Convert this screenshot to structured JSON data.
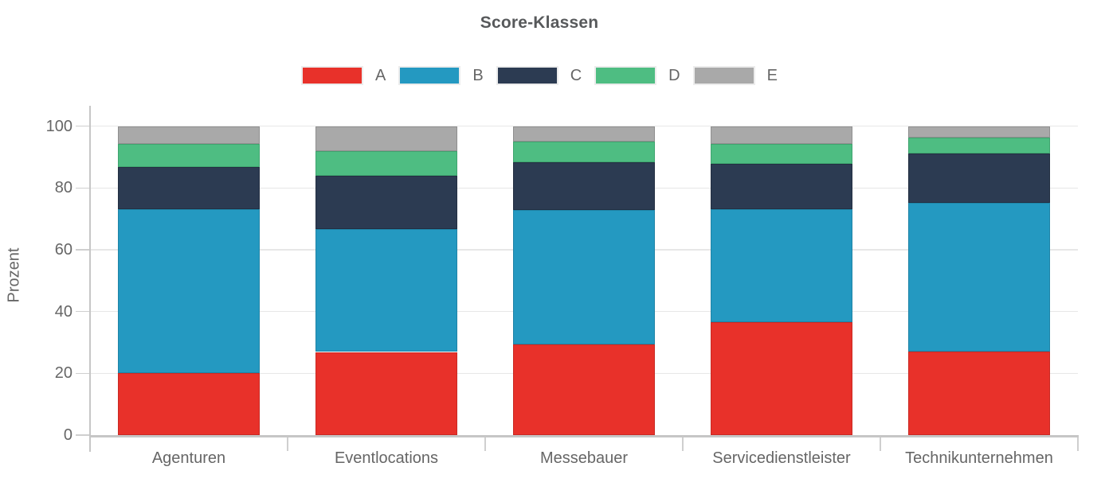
{
  "chart_data": {
    "type": "bar",
    "stacked": true,
    "orientation": "vertical",
    "title": "Score-Klassen",
    "ylabel": "Prozent",
    "xlabel": "",
    "ylim": [
      0,
      100
    ],
    "yticks": [
      0,
      20,
      40,
      60,
      80,
      100
    ],
    "grid": true,
    "legend_position": "top-center",
    "categories": [
      "Agenturen",
      "Eventlocations",
      "Messebauer",
      "Servicedienstleister",
      "Technikunternehmen"
    ],
    "series": [
      {
        "name": "A",
        "color": "#e8312a",
        "border_color": "#c92a24",
        "values": [
          20.1,
          26.9,
          29.3,
          36.5,
          27.1
        ]
      },
      {
        "name": "B",
        "color": "#2499c1",
        "border_color": "#1f84a7",
        "values": [
          53.1,
          39.8,
          43.5,
          36.7,
          48.0
        ]
      },
      {
        "name": "C",
        "color": "#2c3b52",
        "border_color": "#232f42",
        "values": [
          13.5,
          17.3,
          15.5,
          14.7,
          16.1
        ]
      },
      {
        "name": "D",
        "color": "#4ebd82",
        "border_color": "#3fa46f",
        "values": [
          7.6,
          7.8,
          6.6,
          6.4,
          5.0
        ]
      },
      {
        "name": "E",
        "color": "#a9a9a9",
        "border_color": "#8f8f8f",
        "values": [
          5.7,
          8.2,
          5.1,
          5.7,
          3.8
        ]
      }
    ]
  }
}
